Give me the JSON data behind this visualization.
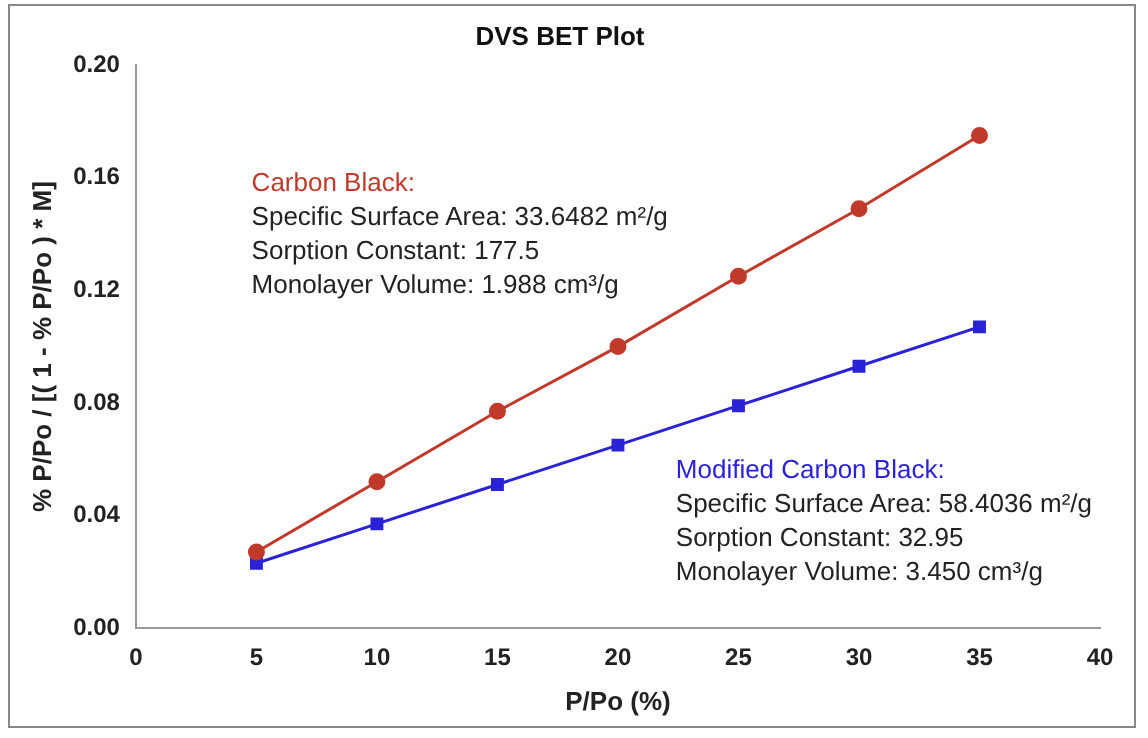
{
  "chart_data": {
    "type": "line",
    "title": "DVS BET Plot",
    "xlabel": "P/Po (%)",
    "ylabel": "% P/Po / [( 1 - % P/Po ) * M]",
    "x": [
      5,
      10,
      15,
      20,
      25,
      30,
      35
    ],
    "series": [
      {
        "name": "Carbon Black:",
        "color": "#c0392b",
        "marker": "circle",
        "values": [
          0.027,
          0.052,
          0.077,
          0.1,
          0.125,
          0.149,
          0.175
        ]
      },
      {
        "name": "Modified Carbon Black:",
        "color": "#2a22d6",
        "marker": "square",
        "values": [
          0.023,
          0.037,
          0.051,
          0.065,
          0.079,
          0.093,
          0.107
        ]
      }
    ],
    "annotations": [
      "Specific Surface Area: 33.6482 m²/g",
      "Sorption Constant: 177.5",
      "Monolayer Volume: 1.988 cm³/g",
      "Specific Surface Area: 58.4036 m²/g",
      "Sorption Constant: 32.95",
      "Monolayer Volume: 3.450 cm³/g"
    ],
    "xlim": [
      0,
      40
    ],
    "xticks": [
      0,
      5,
      10,
      15,
      20,
      25,
      30,
      35,
      40
    ],
    "ylim": [
      0,
      0.2
    ],
    "yticks": [
      {
        "value": 0,
        "label": "0.00"
      },
      {
        "value": 0.04,
        "label": "0.04"
      },
      {
        "value": 0.08,
        "label": "0.08"
      },
      {
        "value": 0.12,
        "label": "0.12"
      },
      {
        "value": 0.16,
        "label": "0.16"
      },
      {
        "value": 0.2,
        "label": "0.20"
      }
    ],
    "grid": false,
    "legend": false,
    "line_style": "solid"
  }
}
